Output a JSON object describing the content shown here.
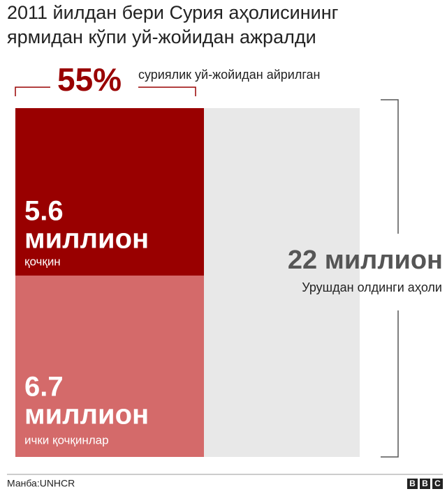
{
  "title": [
    "2011 йилдан бери Сурия аҳолисининг",
    "ярмидан кўпи уй-жойидан ажралди"
  ],
  "headline": {
    "value": "55%",
    "label": "суриялик уй-жойидан айрилган"
  },
  "blocks": [
    {
      "number": "5.6",
      "unit": "миллион",
      "label": "қочқин"
    },
    {
      "number": "6.7",
      "unit": "миллион",
      "label": "ички қочқинлар"
    }
  ],
  "total": {
    "value": "22 миллион",
    "label": "Урушдан олдинги аҳоли"
  },
  "footer": {
    "source": "Манба:UNHCR",
    "logo": [
      "B",
      "B",
      "C"
    ]
  }
}
